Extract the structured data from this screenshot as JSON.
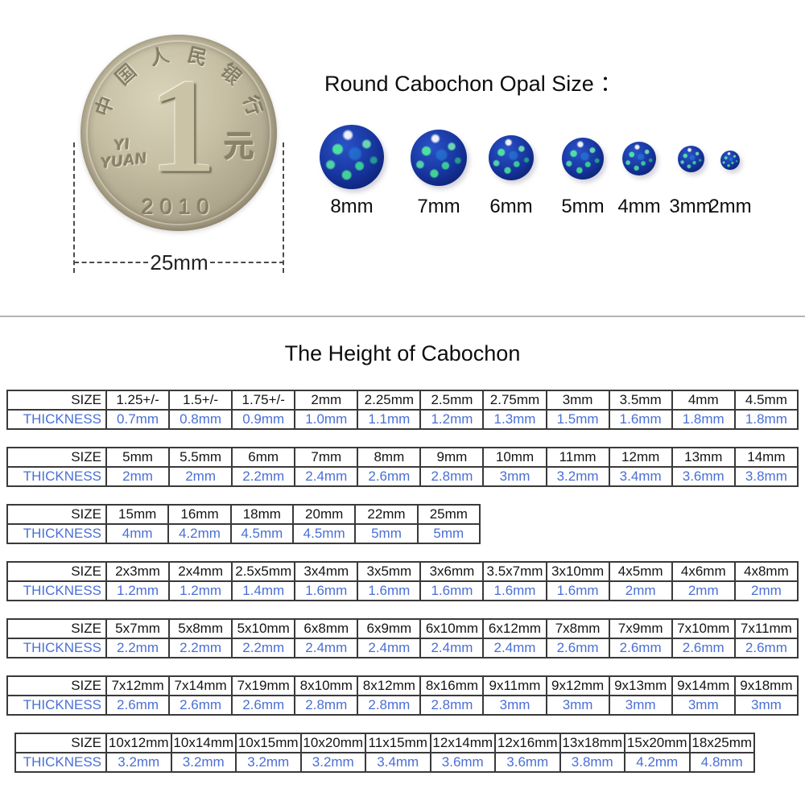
{
  "coin": {
    "bank_name": "中国人民银行",
    "denomination": "1",
    "unit_char": "元",
    "pinyin_line1": "YI",
    "pinyin_line2": "YUAN",
    "year": "2010",
    "diameter_label": "25mm"
  },
  "opal_section": {
    "title": "Round Cabochon Opal Size ：",
    "sizes": [
      "8mm",
      "7mm",
      "6mm",
      "5mm",
      "4mm",
      "3mm",
      "2mm"
    ]
  },
  "table_section": {
    "title": "The Height of Cabochon",
    "row_headers": {
      "size": "SIZE",
      "thickness": "THICKNESS"
    },
    "tables": [
      {
        "sizes": [
          "1.25+/-",
          "1.5+/-",
          "1.75+/-",
          "2mm",
          "2.25mm",
          "2.5mm",
          "2.75mm",
          "3mm",
          "3.5mm",
          "4mm",
          "4.5mm"
        ],
        "thickness": [
          "0.7mm",
          "0.8mm",
          "0.9mm",
          "1.0mm",
          "1.1mm",
          "1.2mm",
          "1.3mm",
          "1.5mm",
          "1.6mm",
          "1.8mm",
          "1.8mm"
        ]
      },
      {
        "sizes": [
          "5mm",
          "5.5mm",
          "6mm",
          "7mm",
          "8mm",
          "9mm",
          "10mm",
          "11mm",
          "12mm",
          "13mm",
          "14mm"
        ],
        "thickness": [
          "2mm",
          "2mm",
          "2.2mm",
          "2.4mm",
          "2.6mm",
          "2.8mm",
          "3mm",
          "3.2mm",
          "3.4mm",
          "3.6mm",
          "3.8mm"
        ]
      },
      {
        "sizes": [
          "15mm",
          "16mm",
          "18mm",
          "20mm",
          "22mm",
          "25mm"
        ],
        "thickness": [
          "4mm",
          "4.2mm",
          "4.5mm",
          "4.5mm",
          "5mm",
          "5mm"
        ]
      },
      {
        "sizes": [
          "2x3mm",
          "2x4mm",
          "2.5x5mm",
          "3x4mm",
          "3x5mm",
          "3x6mm",
          "3.5x7mm",
          "3x10mm",
          "4x5mm",
          "4x6mm",
          "4x8mm"
        ],
        "thickness": [
          "1.2mm",
          "1.2mm",
          "1.4mm",
          "1.6mm",
          "1.6mm",
          "1.6mm",
          "1.6mm",
          "1.6mm",
          "2mm",
          "2mm",
          "2mm"
        ]
      },
      {
        "sizes": [
          "5x7mm",
          "5x8mm",
          "5x10mm",
          "6x8mm",
          "6x9mm",
          "6x10mm",
          "6x12mm",
          "7x8mm",
          "7x9mm",
          "7x10mm",
          "7x11mm"
        ],
        "thickness": [
          "2.2mm",
          "2.2mm",
          "2.2mm",
          "2.4mm",
          "2.4mm",
          "2.4mm",
          "2.4mm",
          "2.6mm",
          "2.6mm",
          "2.6mm",
          "2.6mm"
        ]
      },
      {
        "sizes": [
          "7x12mm",
          "7x14mm",
          "7x19mm",
          "8x10mm",
          "8x12mm",
          "8x16mm",
          "9x11mm",
          "9x12mm",
          "9x13mm",
          "9x14mm",
          "9x18mm"
        ],
        "thickness": [
          "2.6mm",
          "2.6mm",
          "2.6mm",
          "2.8mm",
          "2.8mm",
          "2.8mm",
          "3mm",
          "3mm",
          "3mm",
          "3mm",
          "3mm"
        ]
      },
      {
        "sizes": [
          "10x12mm",
          "10x14mm",
          "10x15mm",
          "10x20mm",
          "11x15mm",
          "12x14mm",
          "12x16mm",
          "13x18mm",
          "15x20mm",
          "18x25mm"
        ],
        "thickness": [
          "3.2mm",
          "3.2mm",
          "3.2mm",
          "3.2mm",
          "3.4mm",
          "3.6mm",
          "3.6mm",
          "3.8mm",
          "4.2mm",
          "4.8mm"
        ]
      }
    ]
  },
  "colors": {
    "thickness_text": "#4a6fd6",
    "table_border": "#3a3a3a",
    "divider": "#b3b3b3",
    "opal_blue": "#16339b",
    "opal_green": "#3fd98f",
    "coin_tone": "#c6bfa4"
  }
}
